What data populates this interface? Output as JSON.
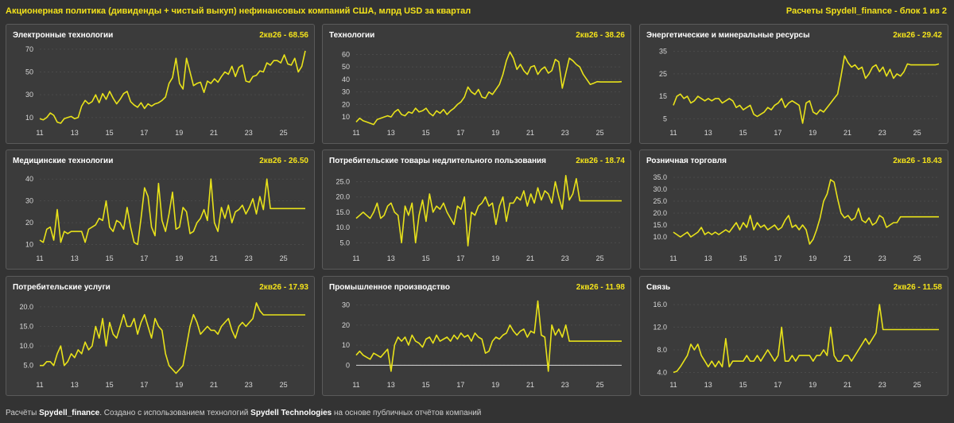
{
  "header": {
    "title": "Акционерная политика (дивиденды + чистый выкуп) нефинансовых компаний США, млрд USD за квартал",
    "source_tag": "Расчеты Spydell_finance - блок 1 из 2"
  },
  "footer": {
    "prefix": "Расчёты ",
    "author": "Spydell_finance",
    "middle": ". Создано с использованием технологий ",
    "tech": "Spydell Technologies",
    "suffix": " на основе публичных отчётов компаний"
  },
  "colors": {
    "line": "#e8e21a",
    "panel_bg": "#3b3b3b",
    "page_bg": "#333333",
    "grid": "#4a4a4a"
  },
  "chart_data": [
    {
      "type": "line",
      "title": "Электронные технологии",
      "latest_label": "2кв26 - 68.56",
      "x_ticks": [
        "11",
        "13",
        "15",
        "17",
        "19",
        "21",
        "23",
        "25"
      ],
      "x_start": 2011,
      "x_end": 2026.25,
      "ylim": [
        5,
        72
      ],
      "y_ticks": [
        10,
        30,
        50,
        70
      ],
      "y_tick_labels": [
        "10",
        "30",
        "50",
        "70"
      ],
      "series": [
        {
          "values": [
            9,
            8,
            10,
            14,
            12,
            6,
            5,
            9,
            10,
            11,
            9,
            10,
            20,
            25,
            22,
            24,
            30,
            23,
            31,
            26,
            33,
            27,
            22,
            26,
            31,
            33,
            24,
            21,
            19,
            23,
            18,
            22,
            20,
            22,
            23,
            25,
            28,
            40,
            45,
            62,
            40,
            35,
            62,
            50,
            38,
            40,
            41,
            32,
            42,
            40,
            44,
            41,
            46,
            50,
            48,
            55,
            46,
            54,
            56,
            42,
            41,
            46,
            47,
            51,
            50,
            58,
            56,
            60,
            60,
            58,
            65,
            57,
            56,
            62,
            50,
            55,
            68.56
          ]
        }
      ]
    },
    {
      "type": "line",
      "title": "Технологии",
      "latest_label": "2кв26 - 38.26",
      "x_ticks": [
        "11",
        "13",
        "15",
        "17",
        "19",
        "21",
        "23",
        "25"
      ],
      "x_start": 2011,
      "x_end": 2026.25,
      "ylim": [
        5,
        66
      ],
      "y_ticks": [
        10,
        20,
        30,
        40,
        50,
        60
      ],
      "y_tick_labels": [
        "10",
        "20",
        "30",
        "40",
        "50",
        "60"
      ],
      "series": [
        {
          "values": [
            6,
            9,
            7,
            6,
            5,
            4,
            8,
            9,
            10,
            11,
            10,
            14,
            16,
            12,
            11,
            14,
            13,
            17,
            14,
            15,
            17,
            13,
            11,
            15,
            13,
            16,
            12,
            15,
            17,
            20,
            22,
            26,
            34,
            30,
            28,
            32,
            26,
            25,
            30,
            28,
            32,
            36,
            44,
            55,
            62,
            57,
            48,
            52,
            47,
            44,
            50,
            51,
            44,
            48,
            50,
            45,
            47,
            56,
            54,
            33,
            45,
            57,
            55,
            52,
            50,
            44,
            40,
            36,
            37,
            38.26,
            38,
            38,
            38,
            38,
            38,
            38,
            38.26
          ]
        }
      ]
    },
    {
      "type": "line",
      "title": "Энергетические и минеральные ресурсы",
      "latest_label": "2кв26 - 29.42",
      "x_ticks": [
        "11",
        "13",
        "15",
        "17",
        "19",
        "21",
        "23",
        "25"
      ],
      "x_start": 2011,
      "x_end": 2026.25,
      "ylim": [
        3,
        37
      ],
      "y_ticks": [
        5,
        15,
        25,
        35
      ],
      "y_tick_labels": [
        "5",
        "15",
        "25",
        "35"
      ],
      "series": [
        {
          "values": [
            11,
            15,
            16,
            14,
            15,
            12,
            13,
            15,
            14,
            13,
            14,
            13,
            14,
            14,
            12,
            13,
            14,
            13,
            10,
            11,
            9,
            10,
            11,
            7,
            6,
            7,
            8,
            10,
            9,
            11,
            12,
            14,
            10,
            12,
            13,
            12,
            11,
            3,
            12,
            13,
            8,
            7,
            9,
            8,
            10,
            12,
            14,
            16,
            24,
            33,
            30,
            28,
            29,
            27,
            28,
            23,
            25,
            28,
            29,
            26,
            28,
            24,
            27,
            23,
            25,
            24,
            26,
            29.42,
            29,
            29,
            29,
            29,
            29,
            29,
            29,
            29,
            29.42
          ]
        }
      ]
    },
    {
      "type": "line",
      "title": "Медицинские технологии",
      "latest_label": "2кв26 - 26.50",
      "x_ticks": [
        "11",
        "13",
        "15",
        "17",
        "19",
        "21",
        "23",
        "25"
      ],
      "x_start": 2011,
      "x_end": 2026.25,
      "ylim": [
        8,
        43
      ],
      "y_ticks": [
        10,
        20,
        30,
        40
      ],
      "y_tick_labels": [
        "10",
        "20",
        "30",
        "40"
      ],
      "series": [
        {
          "values": [
            12,
            11,
            17,
            18,
            12,
            26,
            11,
            16,
            15,
            16,
            16,
            16,
            16,
            11,
            17,
            18,
            19,
            22,
            21,
            30,
            18,
            16,
            21,
            20,
            17,
            27,
            18,
            11,
            10,
            22,
            36,
            32,
            18,
            14,
            38,
            21,
            16,
            24,
            34,
            17,
            18,
            27,
            25,
            15,
            16,
            20,
            22,
            26,
            21,
            40,
            20,
            16,
            27,
            22,
            28,
            20,
            25,
            26,
            28,
            24,
            27,
            31,
            24,
            32,
            26,
            40,
            26.5,
            26.5,
            26.5,
            26.5,
            26.5,
            26.5,
            26.5,
            26.5,
            26.5,
            26.5,
            26.5
          ]
        }
      ]
    },
    {
      "type": "line",
      "title": "Потребительские товары недлительного пользования",
      "latest_label": "2кв26 - 18.74",
      "x_ticks": [
        "11",
        "13",
        "15",
        "17",
        "19",
        "21",
        "23",
        "25"
      ],
      "x_start": 2011,
      "x_end": 2026.25,
      "ylim": [
        3,
        28
      ],
      "y_ticks": [
        5,
        10,
        15,
        20,
        25
      ],
      "y_tick_labels": [
        "5.0",
        "10.0",
        "15.0",
        "20.0",
        "25.0"
      ],
      "series": [
        {
          "values": [
            13,
            14,
            15,
            14,
            13,
            15,
            18,
            13,
            14,
            17,
            18,
            15,
            14,
            5,
            17,
            14,
            18,
            5,
            14,
            19,
            12,
            21,
            15,
            17,
            16,
            18,
            15,
            13,
            11,
            17,
            16,
            20,
            4,
            15,
            14,
            17,
            18,
            20,
            17,
            18,
            11,
            17,
            20,
            12,
            18,
            18,
            20,
            19,
            22,
            17,
            21,
            18,
            23,
            19,
            22,
            21,
            18,
            25,
            20,
            16,
            27,
            19,
            21,
            26,
            18.74,
            18.74,
            18.74,
            18.74,
            18.74,
            18.74,
            18.74,
            18.74,
            18.74,
            18.74,
            18.74,
            18.74,
            18.74
          ]
        }
      ]
    },
    {
      "type": "line",
      "title": "Розничная торговля",
      "latest_label": "2кв26 - 18.43",
      "x_ticks": [
        "11",
        "13",
        "15",
        "17",
        "19",
        "21",
        "23",
        "25"
      ],
      "x_start": 2011,
      "x_end": 2026.25,
      "ylim": [
        5,
        37
      ],
      "y_ticks": [
        10,
        15,
        20,
        25,
        30,
        35
      ],
      "y_tick_labels": [
        "10.0",
        "15.0",
        "20.0",
        "25.0",
        "30.0",
        "35.0"
      ],
      "series": [
        {
          "values": [
            12,
            11,
            10,
            11,
            12,
            10,
            11,
            12,
            14,
            11,
            12,
            11,
            12,
            11,
            12,
            13,
            12,
            14,
            16,
            13,
            16,
            14,
            19,
            13,
            16,
            14,
            15,
            13,
            14,
            15,
            13,
            14,
            17,
            19,
            14,
            15,
            13,
            15,
            13,
            7,
            9,
            13,
            18,
            25,
            28,
            34,
            33,
            26,
            20,
            18,
            19,
            17,
            18,
            22,
            17,
            16,
            18,
            15,
            16,
            19,
            18,
            14,
            15,
            16,
            16,
            18.43,
            18.43,
            18.43,
            18.43,
            18.43,
            18.43,
            18.43,
            18.43,
            18.43,
            18.43,
            18.43,
            18.43
          ]
        }
      ]
    },
    {
      "type": "line",
      "title": "Потребительские услуги",
      "latest_label": "2кв26 - 17.93",
      "x_ticks": [
        "11",
        "13",
        "15",
        "17",
        "19",
        "21",
        "23",
        "25"
      ],
      "x_start": 2011,
      "x_end": 2026.25,
      "ylim": [
        2.5,
        22
      ],
      "y_ticks": [
        5,
        10,
        15,
        20
      ],
      "y_tick_labels": [
        "5.0",
        "10.0",
        "15.0",
        "20.0"
      ],
      "series": [
        {
          "values": [
            5,
            5,
            6,
            6,
            5,
            8,
            10,
            5,
            6,
            8,
            7,
            9,
            8,
            11,
            9,
            10,
            15,
            12,
            17,
            10,
            16,
            13,
            12,
            15,
            18,
            15,
            15,
            17,
            13,
            16,
            18,
            15,
            12,
            17,
            15,
            14,
            8,
            5,
            4,
            3,
            4,
            5,
            10,
            15,
            18,
            16,
            13,
            14,
            15,
            14,
            14,
            13,
            15,
            16,
            17,
            14,
            12,
            15,
            16,
            15,
            16,
            17,
            21,
            19,
            17.93,
            17.93,
            17.93,
            17.93,
            17.93,
            17.93,
            17.93,
            17.93,
            17.93,
            17.93,
            17.93,
            17.93,
            17.93
          ]
        }
      ]
    },
    {
      "type": "line",
      "title": "Промышленное производство",
      "latest_label": "2кв26 - 11.98",
      "x_ticks": [
        "11",
        "13",
        "15",
        "17",
        "19",
        "21",
        "23",
        "25"
      ],
      "x_start": 2011,
      "x_end": 2026.25,
      "ylim": [
        -5,
        33
      ],
      "y_ticks": [
        0,
        10,
        20,
        30
      ],
      "y_tick_labels": [
        "0",
        "10",
        "20",
        "30"
      ],
      "series": [
        {
          "values": [
            5,
            7,
            5,
            4,
            3,
            6,
            5,
            4,
            6,
            8,
            -3,
            10,
            14,
            12,
            14,
            10,
            15,
            12,
            11,
            9,
            13,
            14,
            11,
            15,
            12,
            13,
            14,
            12,
            15,
            13,
            16,
            14,
            15,
            12,
            16,
            14,
            13,
            6,
            7,
            12,
            14,
            13,
            15,
            16,
            20,
            17,
            15,
            17,
            18,
            14,
            17,
            16,
            32,
            15,
            14,
            -3,
            20,
            15,
            18,
            14,
            20,
            11.98,
            11.98,
            11.98,
            11.98,
            11.98,
            11.98,
            11.98,
            11.98,
            11.98,
            11.98,
            11.98,
            11.98,
            11.98,
            11.98,
            11.98,
            11.98
          ]
        }
      ]
    },
    {
      "type": "line",
      "title": "Связь",
      "latest_label": "2кв26 - 11.58",
      "x_ticks": [
        "11",
        "13",
        "15",
        "17",
        "19",
        "21",
        "23",
        "25"
      ],
      "x_start": 2011,
      "x_end": 2026.25,
      "ylim": [
        3.5,
        17
      ],
      "y_ticks": [
        4,
        8,
        12,
        16
      ],
      "y_tick_labels": [
        "4.0",
        "8.0",
        "12.0",
        "16.0"
      ],
      "series": [
        {
          "values": [
            4,
            4.2,
            5,
            6,
            7,
            9,
            8,
            9,
            7,
            6,
            5,
            6,
            5,
            6,
            5,
            10,
            5,
            6,
            6,
            6,
            6,
            7,
            6,
            6,
            7,
            6,
            7,
            8,
            7,
            6,
            7,
            12,
            6,
            6,
            7,
            6,
            7,
            7,
            7,
            7,
            6,
            7,
            7,
            8,
            7,
            12,
            7,
            6,
            6,
            7,
            7,
            6,
            7,
            8,
            9,
            10,
            9,
            10,
            11,
            16,
            11.58,
            11.58,
            11.58,
            11.58,
            11.58,
            11.58,
            11.58,
            11.58,
            11.58,
            11.58,
            11.58,
            11.58,
            11.58,
            11.58,
            11.58,
            11.58,
            11.58
          ]
        }
      ]
    }
  ]
}
